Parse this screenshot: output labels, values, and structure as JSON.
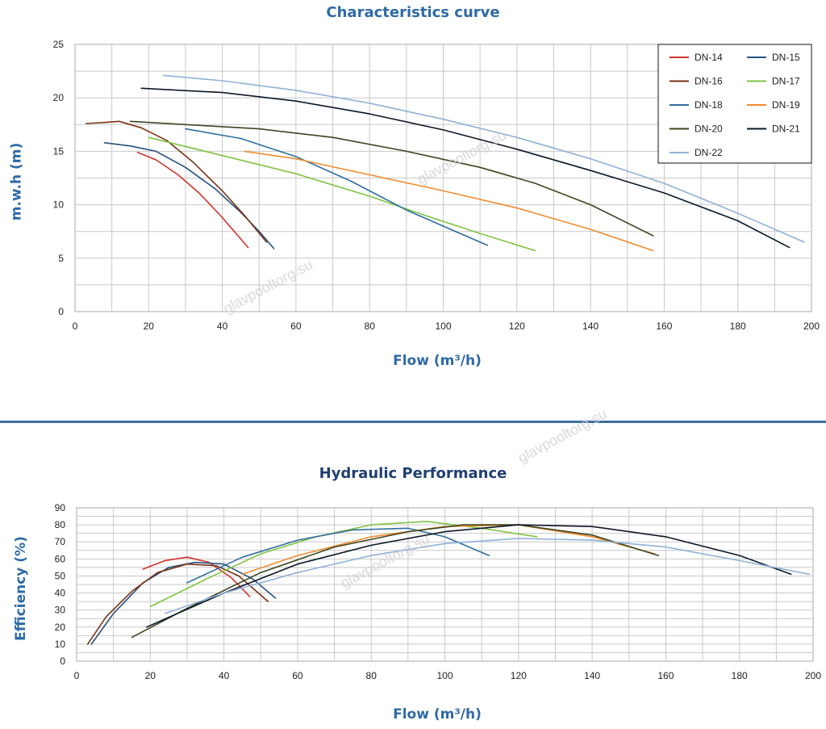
{
  "chart_data": [
    {
      "type": "line",
      "title": "Characteristics curve",
      "xlabel": "Flow (m³/h)",
      "ylabel": "m.w.h (m)",
      "xlim": [
        0,
        200
      ],
      "ylim": [
        0,
        25
      ],
      "xticks": [
        0,
        20,
        40,
        60,
        80,
        100,
        120,
        140,
        160,
        180,
        200
      ],
      "yticks": [
        0,
        5,
        10,
        15,
        20,
        25
      ],
      "grid": true,
      "legend_position": "top-right",
      "series": [
        {
          "name": "DN-14",
          "color": "#d2322d",
          "points": [
            [
              17,
              14.9
            ],
            [
              22,
              14.2
            ],
            [
              28,
              12.8
            ],
            [
              34,
              11
            ],
            [
              40,
              8.8
            ],
            [
              47,
              6
            ]
          ]
        },
        {
          "name": "DN-15",
          "color": "#27507f",
          "points": [
            [
              8,
              15.8
            ],
            [
              15,
              15.5
            ],
            [
              22,
              15
            ],
            [
              30,
              13.5
            ],
            [
              38,
              11.5
            ],
            [
              45,
              9.3
            ],
            [
              50,
              7.5
            ],
            [
              54,
              5.9
            ]
          ]
        },
        {
          "name": "DN-16",
          "color": "#7a3214",
          "points": [
            [
              3,
              17.6
            ],
            [
              8,
              17.7
            ],
            [
              12,
              17.8
            ],
            [
              18,
              17.2
            ],
            [
              25,
              16
            ],
            [
              32,
              14
            ],
            [
              40,
              11.3
            ],
            [
              46,
              9
            ],
            [
              52,
              6.5
            ]
          ]
        },
        {
          "name": "DN-17",
          "color": "#80c342",
          "points": [
            [
              20,
              16.3
            ],
            [
              40,
              14.6
            ],
            [
              60,
              12.9
            ],
            [
              80,
              10.8
            ],
            [
              95,
              9
            ],
            [
              110,
              7.3
            ],
            [
              125,
              5.7
            ]
          ]
        },
        {
          "name": "DN-18",
          "color": "#2f6f9f",
          "points": [
            [
              30,
              17.1
            ],
            [
              45,
              16.2
            ],
            [
              60,
              14.5
            ],
            [
              75,
              12.2
            ],
            [
              90,
              9.5
            ],
            [
              100,
              8
            ],
            [
              112,
              6.2
            ]
          ]
        },
        {
          "name": "DN-19",
          "color": "#f08c2e",
          "points": [
            [
              46,
              15
            ],
            [
              60,
              14.3
            ],
            [
              80,
              12.8
            ],
            [
              100,
              11.3
            ],
            [
              120,
              9.7
            ],
            [
              140,
              7.7
            ],
            [
              157,
              5.7
            ]
          ]
        },
        {
          "name": "DN-20",
          "color": "#3c461f",
          "points": [
            [
              15,
              17.8
            ],
            [
              30,
              17.5
            ],
            [
              50,
              17.1
            ],
            [
              70,
              16.3
            ],
            [
              90,
              15
            ],
            [
              110,
              13.5
            ],
            [
              125,
              12
            ],
            [
              140,
              10
            ],
            [
              157,
              7.1
            ]
          ]
        },
        {
          "name": "DN-21",
          "color": "#0b1826",
          "points": [
            [
              18,
              20.9
            ],
            [
              40,
              20.5
            ],
            [
              60,
              19.7
            ],
            [
              80,
              18.5
            ],
            [
              100,
              17
            ],
            [
              120,
              15.2
            ],
            [
              140,
              13.2
            ],
            [
              160,
              11.1
            ],
            [
              180,
              8.5
            ],
            [
              194,
              6
            ]
          ]
        },
        {
          "name": "DN-22",
          "color": "#8fb1d8",
          "points": [
            [
              24,
              22.1
            ],
            [
              40,
              21.6
            ],
            [
              60,
              20.7
            ],
            [
              80,
              19.5
            ],
            [
              100,
              18
            ],
            [
              120,
              16.3
            ],
            [
              140,
              14.3
            ],
            [
              160,
              12
            ],
            [
              180,
              9.2
            ],
            [
              198,
              6.5
            ]
          ]
        }
      ]
    },
    {
      "type": "line",
      "title": "Hydraulic Performance",
      "xlabel": "Flow (m³/h)",
      "ylabel": "Efficiency (%)",
      "xlim": [
        0,
        200
      ],
      "ylim": [
        0,
        90
      ],
      "xticks": [
        0,
        20,
        40,
        60,
        80,
        100,
        120,
        140,
        160,
        180,
        200
      ],
      "yticks": [
        0,
        10,
        20,
        30,
        40,
        50,
        60,
        70,
        80,
        90
      ],
      "grid": true,
      "series": [
        {
          "name": "DN-14",
          "color": "#d2322d",
          "points": [
            [
              18,
              54
            ],
            [
              24,
              59
            ],
            [
              30,
              61
            ],
            [
              36,
              58
            ],
            [
              42,
              49
            ],
            [
              47,
              38
            ]
          ]
        },
        {
          "name": "DN-15",
          "color": "#27507f",
          "points": [
            [
              4,
              10
            ],
            [
              10,
              28
            ],
            [
              18,
              46
            ],
            [
              25,
              55
            ],
            [
              32,
              58
            ],
            [
              40,
              57
            ],
            [
              48,
              48
            ],
            [
              54,
              37
            ]
          ]
        },
        {
          "name": "DN-16",
          "color": "#7a3214",
          "points": [
            [
              3,
              10
            ],
            [
              8,
              26
            ],
            [
              15,
              41
            ],
            [
              22,
              52
            ],
            [
              30,
              57
            ],
            [
              38,
              56
            ],
            [
              44,
              50
            ],
            [
              52,
              35
            ]
          ]
        },
        {
          "name": "DN-17",
          "color": "#80c342",
          "points": [
            [
              20,
              32
            ],
            [
              35,
              48
            ],
            [
              50,
              63
            ],
            [
              65,
              73
            ],
            [
              80,
              80
            ],
            [
              95,
              82
            ],
            [
              110,
              78
            ],
            [
              125,
              73
            ]
          ]
        },
        {
          "name": "DN-18",
          "color": "#2f6f9f",
          "points": [
            [
              30,
              46
            ],
            [
              45,
              61
            ],
            [
              60,
              71
            ],
            [
              75,
              77
            ],
            [
              90,
              78
            ],
            [
              100,
              73
            ],
            [
              112,
              62
            ]
          ]
        },
        {
          "name": "DN-19",
          "color": "#f08c2e",
          "points": [
            [
              45,
              51
            ],
            [
              60,
              62
            ],
            [
              80,
              73
            ],
            [
              100,
              79
            ],
            [
              120,
              80
            ],
            [
              140,
              73
            ],
            [
              157,
              63
            ]
          ]
        },
        {
          "name": "DN-20",
          "color": "#3c461f",
          "points": [
            [
              15,
              14
            ],
            [
              30,
              31
            ],
            [
              50,
              52
            ],
            [
              70,
              67
            ],
            [
              90,
              76
            ],
            [
              105,
              80
            ],
            [
              120,
              80
            ],
            [
              140,
              74
            ],
            [
              158,
              62
            ]
          ]
        },
        {
          "name": "DN-21",
          "color": "#0b1826",
          "points": [
            [
              19,
              20
            ],
            [
              40,
              40
            ],
            [
              60,
              57
            ],
            [
              80,
              68
            ],
            [
              100,
              76
            ],
            [
              120,
              80
            ],
            [
              140,
              79
            ],
            [
              160,
              73
            ],
            [
              180,
              62
            ],
            [
              194,
              51
            ]
          ]
        },
        {
          "name": "DN-22",
          "color": "#8fb1d8",
          "points": [
            [
              24,
              28
            ],
            [
              40,
              40
            ],
            [
              60,
              52
            ],
            [
              80,
              62
            ],
            [
              100,
              69
            ],
            [
              120,
              72
            ],
            [
              140,
              71
            ],
            [
              160,
              67
            ],
            [
              180,
              59
            ],
            [
              199,
              51
            ]
          ]
        }
      ]
    }
  ],
  "watermarks": [
    "glavpooltorg.su",
    "glavpooltorg.su",
    "glavpooltorg.su",
    "glavpooltorg.su"
  ]
}
